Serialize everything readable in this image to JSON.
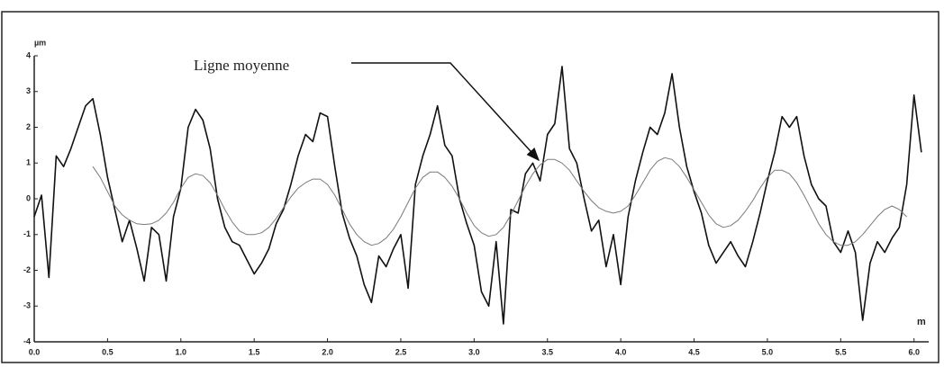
{
  "chart_data": {
    "type": "line",
    "ylabel": "µm",
    "xlabel": "m",
    "annotation": "Ligne moyenne",
    "x": [
      0,
      0.05,
      0.1,
      0.15,
      0.2,
      0.25,
      0.3,
      0.35,
      0.4,
      0.45,
      0.5,
      0.55,
      0.6,
      0.65,
      0.7,
      0.75,
      0.8,
      0.85,
      0.9,
      0.95,
      1,
      1.05,
      1.1,
      1.15,
      1.2,
      1.25,
      1.3,
      1.35,
      1.4,
      1.45,
      1.5,
      1.55,
      1.6,
      1.65,
      1.7,
      1.75,
      1.8,
      1.85,
      1.9,
      1.95,
      2,
      2.05,
      2.1,
      2.15,
      2.2,
      2.25,
      2.3,
      2.35,
      2.4,
      2.45,
      2.5,
      2.55,
      2.6,
      2.65,
      2.7,
      2.75,
      2.8,
      2.85,
      2.9,
      2.95,
      3,
      3.05,
      3.1,
      3.15,
      3.2,
      3.25,
      3.3,
      3.35,
      3.4,
      3.45,
      3.5,
      3.55,
      3.6,
      3.65,
      3.7,
      3.75,
      3.8,
      3.85,
      3.9,
      3.95,
      4,
      4.05,
      4.1,
      4.15,
      4.2,
      4.25,
      4.3,
      4.35,
      4.4,
      4.45,
      4.5,
      4.55,
      4.6,
      4.65,
      4.7,
      4.75,
      4.8,
      4.85,
      4.9,
      4.95,
      5,
      5.05,
      5.1,
      5.15,
      5.2,
      5.25,
      5.3,
      5.35,
      5.4,
      5.45,
      5.5,
      5.55,
      5.6,
      5.65,
      5.7,
      5.75,
      5.8,
      5.85,
      5.9,
      5.95,
      6,
      6.05
    ],
    "series": [
      {
        "color": "#111111",
        "width": 1.6,
        "values": [
          -0.5,
          0.1,
          -2.2,
          1.2,
          0.9,
          1.4,
          2.0,
          2.6,
          2.8,
          1.8,
          0.6,
          -0.3,
          -1.2,
          -0.6,
          -1.4,
          -2.3,
          -0.8,
          -1.0,
          -2.3,
          -0.5,
          0.3,
          2.0,
          2.5,
          2.2,
          1.4,
          0.0,
          -0.8,
          -1.2,
          -1.3,
          -1.7,
          -2.1,
          -1.8,
          -1.4,
          -0.7,
          -0.3,
          0.4,
          1.2,
          1.8,
          1.6,
          2.4,
          2.3,
          0.9,
          -0.4,
          -1.1,
          -1.6,
          -2.4,
          -2.9,
          -1.6,
          -1.9,
          -1.4,
          -1.0,
          -2.5,
          0.4,
          1.2,
          1.8,
          2.6,
          1.5,
          1.2,
          0.0,
          -0.7,
          -1.3,
          -2.6,
          -3.0,
          -1.2,
          -3.5,
          -0.3,
          -0.4,
          0.7,
          1.0,
          0.5,
          1.8,
          2.1,
          3.7,
          1.4,
          1.0,
          0.0,
          -0.9,
          -0.6,
          -1.9,
          -1.0,
          -2.4,
          -0.5,
          0.5,
          1.3,
          2.0,
          1.8,
          2.4,
          3.5,
          2.0,
          0.9,
          0.2,
          -0.4,
          -1.3,
          -1.8,
          -1.5,
          -1.2,
          -1.6,
          -1.9,
          -1.2,
          -0.4,
          0.5,
          1.3,
          2.3,
          2.0,
          2.3,
          1.2,
          0.4,
          0.0,
          -0.2,
          -1.2,
          -1.5,
          -0.9,
          -1.5,
          -3.4,
          -1.8,
          -1.2,
          -1.5,
          -1.1,
          -0.8,
          0.4,
          2.9,
          1.3
        ]
      },
      {
        "color": "#7a7a7a",
        "width": 1,
        "values": [
          null,
          null,
          null,
          null,
          null,
          null,
          null,
          null,
          0.9,
          0.6,
          0.2,
          -0.2,
          -0.45,
          -0.6,
          -0.7,
          -0.72,
          -0.7,
          -0.6,
          -0.4,
          -0.1,
          0.3,
          0.6,
          0.7,
          0.65,
          0.45,
          0.1,
          -0.3,
          -0.65,
          -0.9,
          -1.0,
          -1.0,
          -0.95,
          -0.8,
          -0.55,
          -0.25,
          0.05,
          0.3,
          0.45,
          0.55,
          0.55,
          0.4,
          0.1,
          -0.3,
          -0.7,
          -1.0,
          -1.2,
          -1.3,
          -1.25,
          -1.1,
          -0.85,
          -0.5,
          -0.1,
          0.3,
          0.6,
          0.75,
          0.75,
          0.6,
          0.35,
          0.0,
          -0.4,
          -0.75,
          -0.95,
          -1.05,
          -1.0,
          -0.8,
          -0.45,
          -0.05,
          0.35,
          0.7,
          0.95,
          1.1,
          1.1,
          1.0,
          0.8,
          0.5,
          0.2,
          -0.05,
          -0.25,
          -0.35,
          -0.4,
          -0.35,
          -0.2,
          0.1,
          0.45,
          0.8,
          1.05,
          1.15,
          1.1,
          0.9,
          0.6,
          0.25,
          -0.1,
          -0.45,
          -0.7,
          -0.8,
          -0.75,
          -0.6,
          -0.35,
          -0.05,
          0.3,
          0.6,
          0.8,
          0.8,
          0.7,
          0.45,
          0.1,
          -0.3,
          -0.7,
          -1.0,
          -1.2,
          -1.3,
          -1.3,
          -1.2,
          -1.0,
          -0.75,
          -0.5,
          -0.3,
          -0.2,
          -0.3,
          -0.5,
          null,
          null
        ]
      }
    ],
    "xlim": [
      0,
      6.1
    ],
    "ylim": [
      -4,
      4
    ],
    "xticks": [
      {
        "value": 0,
        "label": "0.0"
      },
      0.5,
      {
        "value": 1,
        "label": "1.0"
      },
      1.5,
      {
        "value": 2,
        "label": "2.0"
      },
      2.5,
      {
        "value": 3,
        "label": "3.0"
      },
      3.5,
      {
        "value": 4,
        "label": "4.0"
      },
      4.5,
      {
        "value": 5,
        "label": "5.0"
      },
      5.5,
      {
        "value": 6,
        "label": "6.0"
      }
    ],
    "yticks": [
      -4,
      -3,
      -2,
      -1,
      0,
      1,
      2,
      3,
      4
    ]
  }
}
